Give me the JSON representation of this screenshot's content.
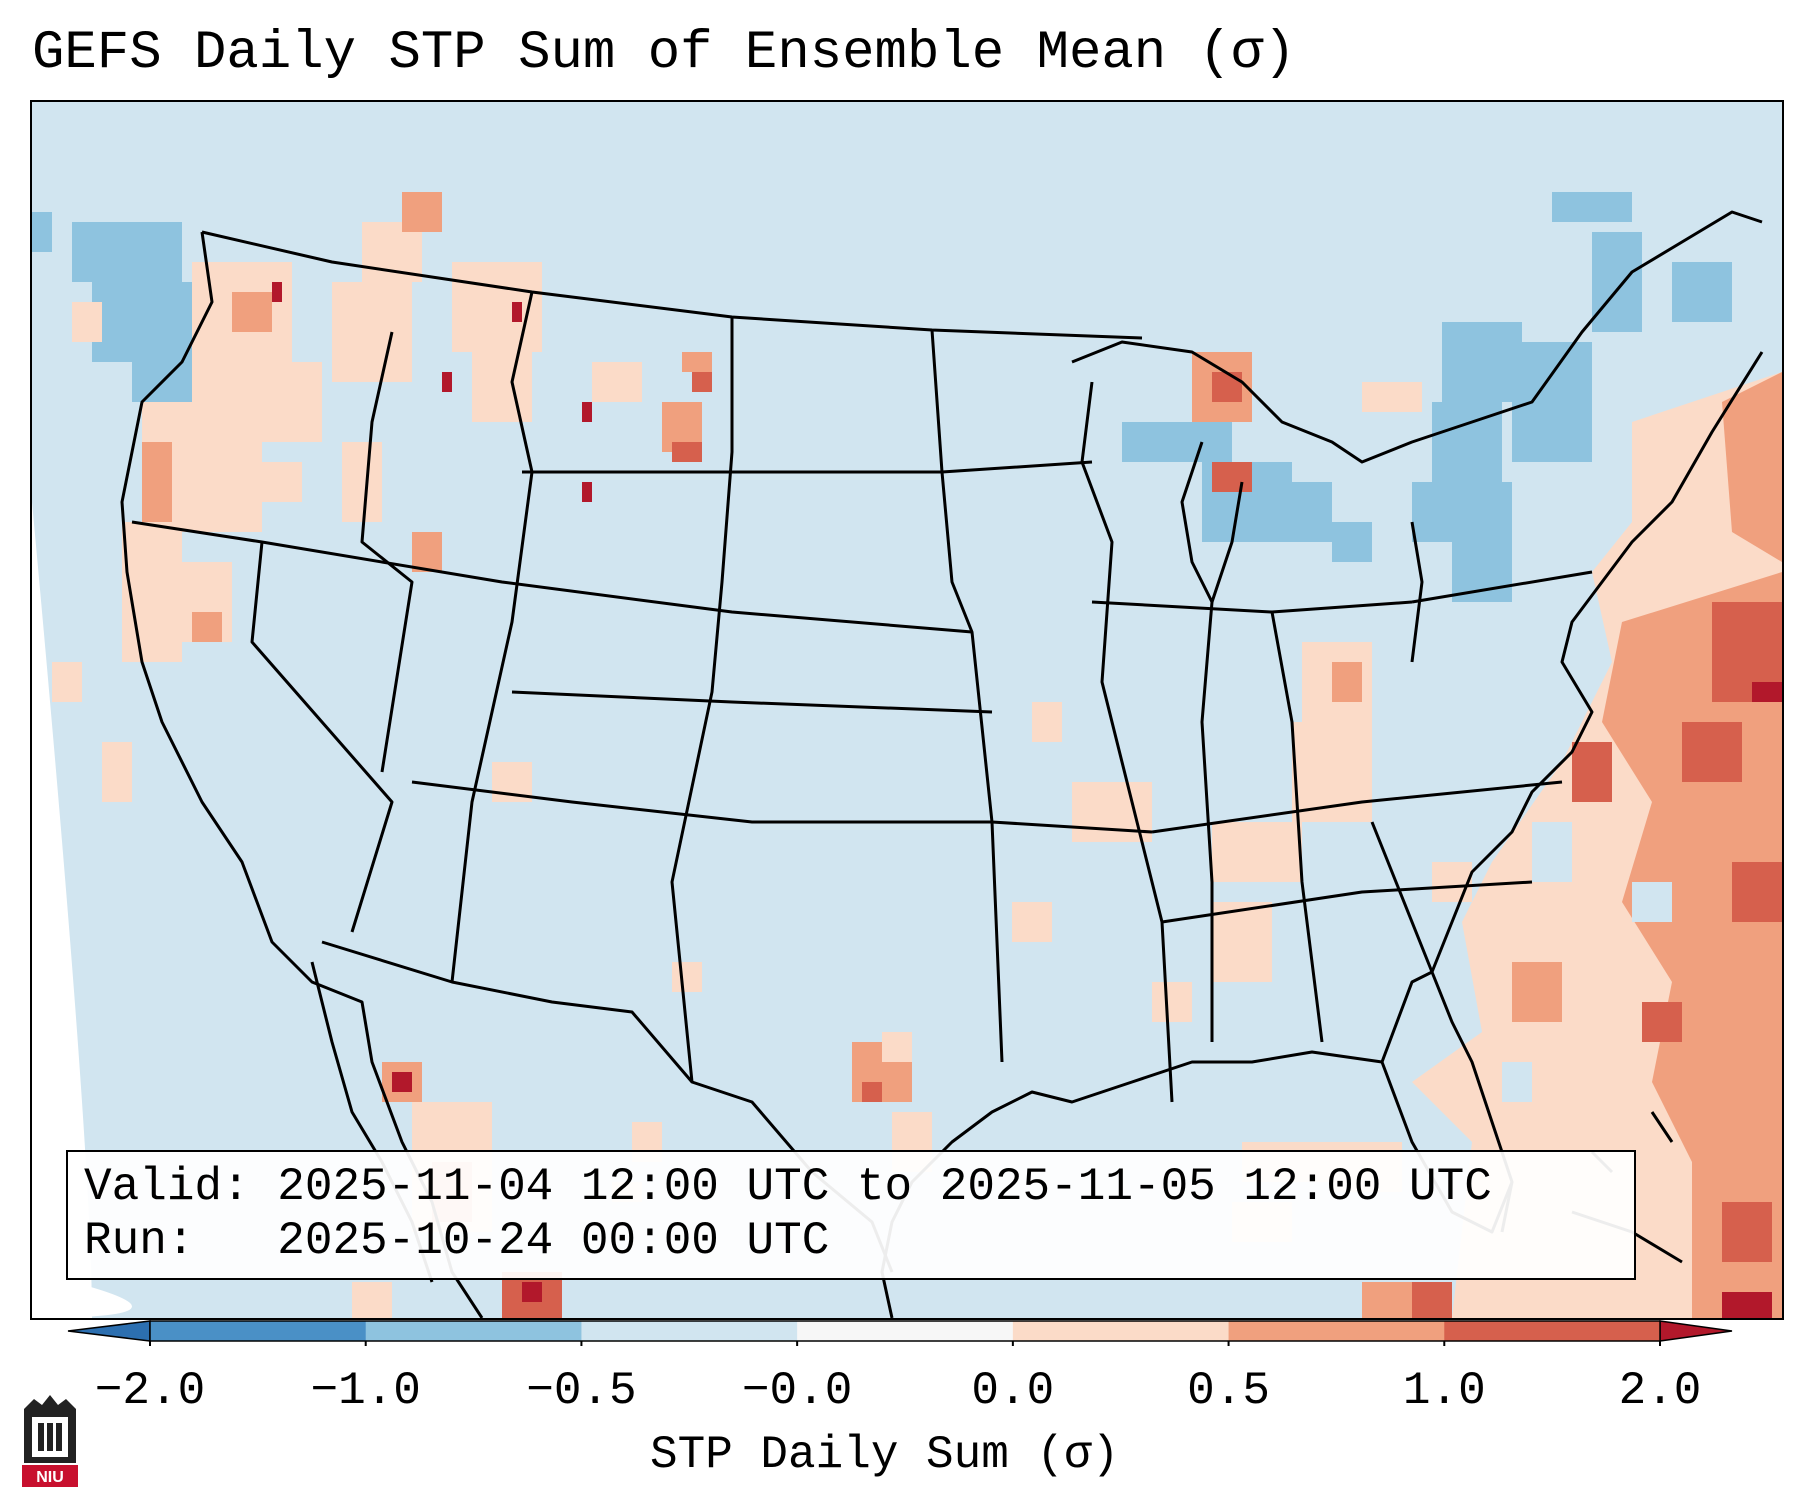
{
  "title": "GEFS Daily STP Sum of Ensemble Mean (σ)",
  "valid_line": "Valid: 2025-11-04 12:00 UTC to 2025-11-05 12:00 UTC",
  "run_line": "Run:   2025-10-24 00:00 UTC",
  "colorbar": {
    "label": "STP Daily Sum (σ)",
    "ticks": [
      "−2.0",
      "−1.0",
      "−0.5",
      "−0.0",
      "0.0",
      "0.5",
      "1.0",
      "2.0"
    ],
    "colors": [
      "#4a90c6",
      "#8ec3df",
      "#d1e5f0",
      "#f7f7f7",
      "#fbdbc8",
      "#f0a07e",
      "#d6604d"
    ],
    "extend_low_color": "#2c6fb0",
    "extend_high_color": "#b2182b"
  },
  "logo": {
    "text": "NIU",
    "icon": "niu-logo-icon",
    "color": "#c8102e"
  },
  "map_colors": {
    "background": "#d1e5f0",
    "outside": "#ffffff",
    "strong_blue": "#8ec3df",
    "light_red": "#fbdbc8",
    "mid_red": "#f0a07e",
    "strong_red": "#d6604d",
    "dark_red": "#b2182b"
  }
}
